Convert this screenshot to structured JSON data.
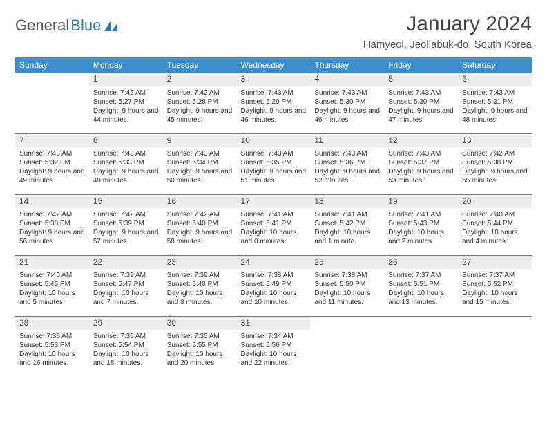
{
  "logo": {
    "text1": "General",
    "text2": "Blue"
  },
  "header": {
    "month": "January 2024",
    "location": "Hamyeol, Jeollabuk-do, South Korea"
  },
  "colors": {
    "header_bg": "#3c8dcc",
    "header_text": "#ffffff",
    "daynum_bg": "#ededed",
    "rule": "#3c8dcc"
  },
  "weekdays": [
    "Sunday",
    "Monday",
    "Tuesday",
    "Wednesday",
    "Thursday",
    "Friday",
    "Saturday"
  ],
  "weeks": [
    [
      {
        "empty": true
      },
      {
        "n": "1",
        "sunrise": "7:42 AM",
        "sunset": "5:27 PM",
        "daylight": "9 hours and 44 minutes."
      },
      {
        "n": "2",
        "sunrise": "7:42 AM",
        "sunset": "5:28 PM",
        "daylight": "9 hours and 45 minutes."
      },
      {
        "n": "3",
        "sunrise": "7:43 AM",
        "sunset": "5:29 PM",
        "daylight": "9 hours and 46 minutes."
      },
      {
        "n": "4",
        "sunrise": "7:43 AM",
        "sunset": "5:30 PM",
        "daylight": "9 hours and 46 minutes."
      },
      {
        "n": "5",
        "sunrise": "7:43 AM",
        "sunset": "5:30 PM",
        "daylight": "9 hours and 47 minutes."
      },
      {
        "n": "6",
        "sunrise": "7:43 AM",
        "sunset": "5:31 PM",
        "daylight": "9 hours and 48 minutes."
      }
    ],
    [
      {
        "n": "7",
        "sunrise": "7:43 AM",
        "sunset": "5:32 PM",
        "daylight": "9 hours and 49 minutes."
      },
      {
        "n": "8",
        "sunrise": "7:43 AM",
        "sunset": "5:33 PM",
        "daylight": "9 hours and 49 minutes."
      },
      {
        "n": "9",
        "sunrise": "7:43 AM",
        "sunset": "5:34 PM",
        "daylight": "9 hours and 50 minutes."
      },
      {
        "n": "10",
        "sunrise": "7:43 AM",
        "sunset": "5:35 PM",
        "daylight": "9 hours and 51 minutes."
      },
      {
        "n": "11",
        "sunrise": "7:43 AM",
        "sunset": "5:36 PM",
        "daylight": "9 hours and 52 minutes."
      },
      {
        "n": "12",
        "sunrise": "7:43 AM",
        "sunset": "5:37 PM",
        "daylight": "9 hours and 53 minutes."
      },
      {
        "n": "13",
        "sunrise": "7:42 AM",
        "sunset": "5:38 PM",
        "daylight": "9 hours and 55 minutes."
      }
    ],
    [
      {
        "n": "14",
        "sunrise": "7:42 AM",
        "sunset": "5:38 PM",
        "daylight": "9 hours and 56 minutes."
      },
      {
        "n": "15",
        "sunrise": "7:42 AM",
        "sunset": "5:39 PM",
        "daylight": "9 hours and 57 minutes."
      },
      {
        "n": "16",
        "sunrise": "7:42 AM",
        "sunset": "5:40 PM",
        "daylight": "9 hours and 58 minutes."
      },
      {
        "n": "17",
        "sunrise": "7:41 AM",
        "sunset": "5:41 PM",
        "daylight": "10 hours and 0 minutes."
      },
      {
        "n": "18",
        "sunrise": "7:41 AM",
        "sunset": "5:42 PM",
        "daylight": "10 hours and 1 minute."
      },
      {
        "n": "19",
        "sunrise": "7:41 AM",
        "sunset": "5:43 PM",
        "daylight": "10 hours and 2 minutes."
      },
      {
        "n": "20",
        "sunrise": "7:40 AM",
        "sunset": "5:44 PM",
        "daylight": "10 hours and 4 minutes."
      }
    ],
    [
      {
        "n": "21",
        "sunrise": "7:40 AM",
        "sunset": "5:45 PM",
        "daylight": "10 hours and 5 minutes."
      },
      {
        "n": "22",
        "sunrise": "7:39 AM",
        "sunset": "5:47 PM",
        "daylight": "10 hours and 7 minutes."
      },
      {
        "n": "23",
        "sunrise": "7:39 AM",
        "sunset": "5:48 PM",
        "daylight": "10 hours and 8 minutes."
      },
      {
        "n": "24",
        "sunrise": "7:38 AM",
        "sunset": "5:49 PM",
        "daylight": "10 hours and 10 minutes."
      },
      {
        "n": "25",
        "sunrise": "7:38 AM",
        "sunset": "5:50 PM",
        "daylight": "10 hours and 11 minutes."
      },
      {
        "n": "26",
        "sunrise": "7:37 AM",
        "sunset": "5:51 PM",
        "daylight": "10 hours and 13 minutes."
      },
      {
        "n": "27",
        "sunrise": "7:37 AM",
        "sunset": "5:52 PM",
        "daylight": "10 hours and 15 minutes."
      }
    ],
    [
      {
        "n": "28",
        "sunrise": "7:36 AM",
        "sunset": "5:53 PM",
        "daylight": "10 hours and 16 minutes."
      },
      {
        "n": "29",
        "sunrise": "7:35 AM",
        "sunset": "5:54 PM",
        "daylight": "10 hours and 18 minutes."
      },
      {
        "n": "30",
        "sunrise": "7:35 AM",
        "sunset": "5:55 PM",
        "daylight": "10 hours and 20 minutes."
      },
      {
        "n": "31",
        "sunrise": "7:34 AM",
        "sunset": "5:56 PM",
        "daylight": "10 hours and 22 minutes."
      },
      {
        "empty": true
      },
      {
        "empty": true
      },
      {
        "empty": true
      }
    ]
  ],
  "labels": {
    "sunrise": "Sunrise:",
    "sunset": "Sunset:",
    "daylight": "Daylight:"
  }
}
